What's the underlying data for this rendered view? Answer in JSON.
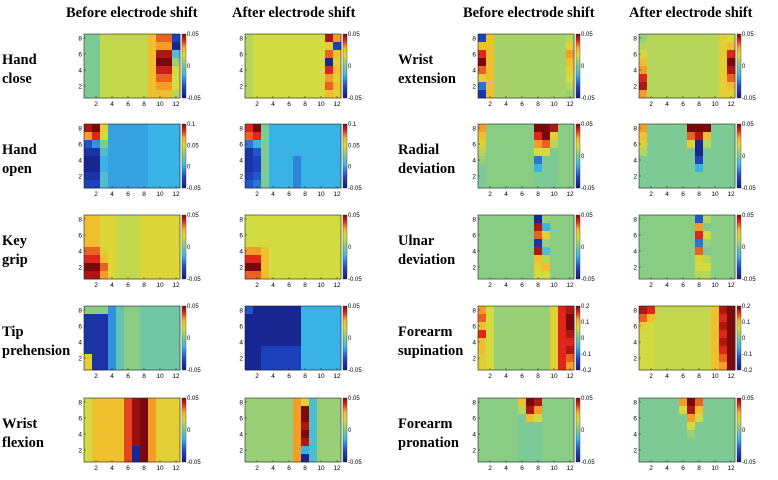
{
  "figure": {
    "column_headers": [
      "Before electrode shift",
      "After electrode shift",
      "Before electrode shift",
      "After electrode shift"
    ],
    "x_ticks": [
      "2",
      "4",
      "6",
      "8",
      "10",
      "12"
    ],
    "y_ticks": [
      "2",
      "4",
      "6",
      "8"
    ],
    "colormap": [
      "#14187a",
      "#1f49c8",
      "#3bb8e8",
      "#86cc88",
      "#d8dc3a",
      "#f7b52a",
      "#e0261c",
      "#7a0a0a"
    ]
  },
  "chart_data": [
    {
      "type": "heatmap",
      "gesture": "Hand close",
      "label_lines": [
        "Hand",
        "close"
      ],
      "cb_ticks": [
        "0.05",
        "0",
        "-0.05"
      ],
      "before": [],
      "after": []
    }
  ]
}
